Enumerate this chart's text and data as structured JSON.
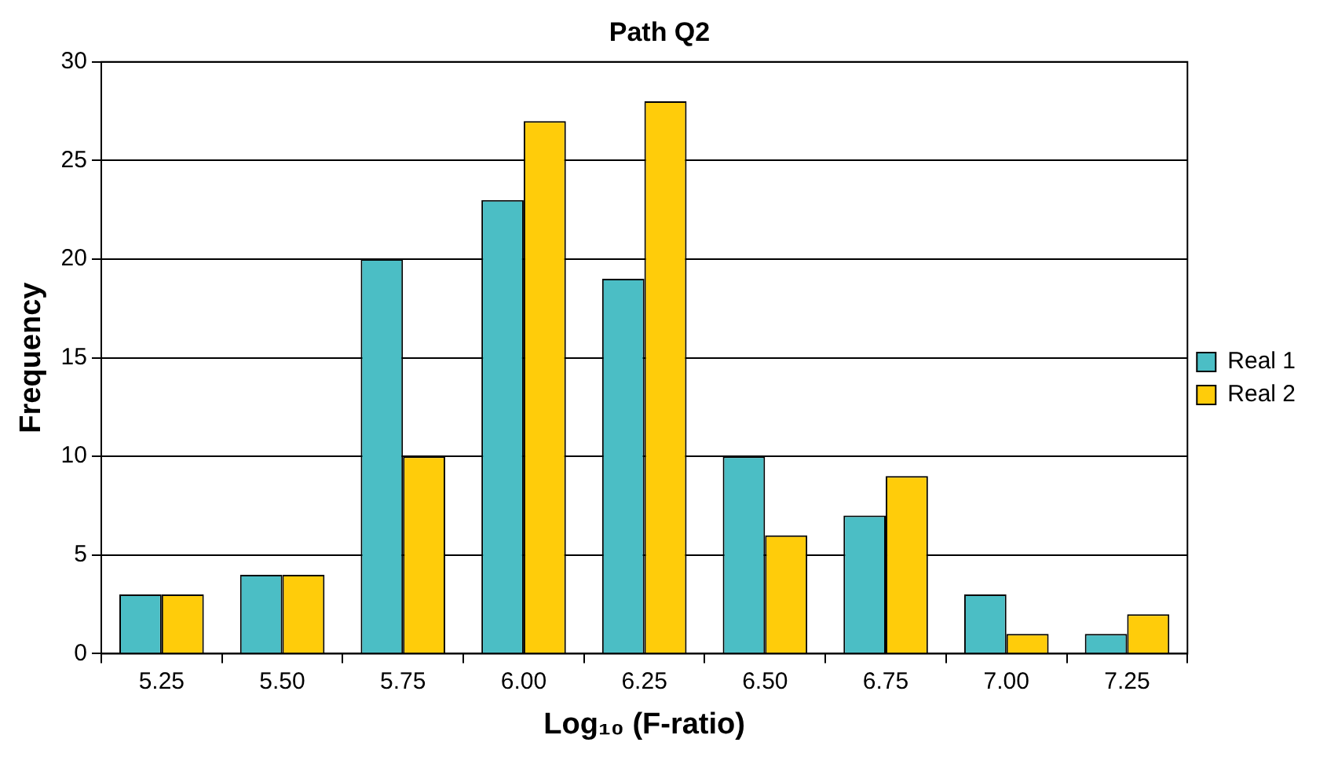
{
  "chart_data": {
    "type": "bar",
    "title": "Path Q2",
    "xlabel": "Log₁₀ (F-ratio)",
    "ylabel": "Frequency",
    "categories": [
      "5.25",
      "5.50",
      "5.75",
      "6.00",
      "6.25",
      "6.50",
      "6.75",
      "7.00",
      "7.25"
    ],
    "series": [
      {
        "name": "Real 1",
        "color": "#4bbec5",
        "values": [
          3,
          4,
          20,
          23,
          19,
          10,
          7,
          3,
          1
        ]
      },
      {
        "name": "Real 2",
        "color": "#ffcc0a",
        "values": [
          3,
          4,
          10,
          27,
          28,
          6,
          9,
          1,
          2
        ]
      }
    ],
    "ylim": [
      0,
      30
    ],
    "yticks": [
      0,
      5,
      10,
      15,
      20,
      25,
      30
    ],
    "grid": "y",
    "legend": "right"
  }
}
